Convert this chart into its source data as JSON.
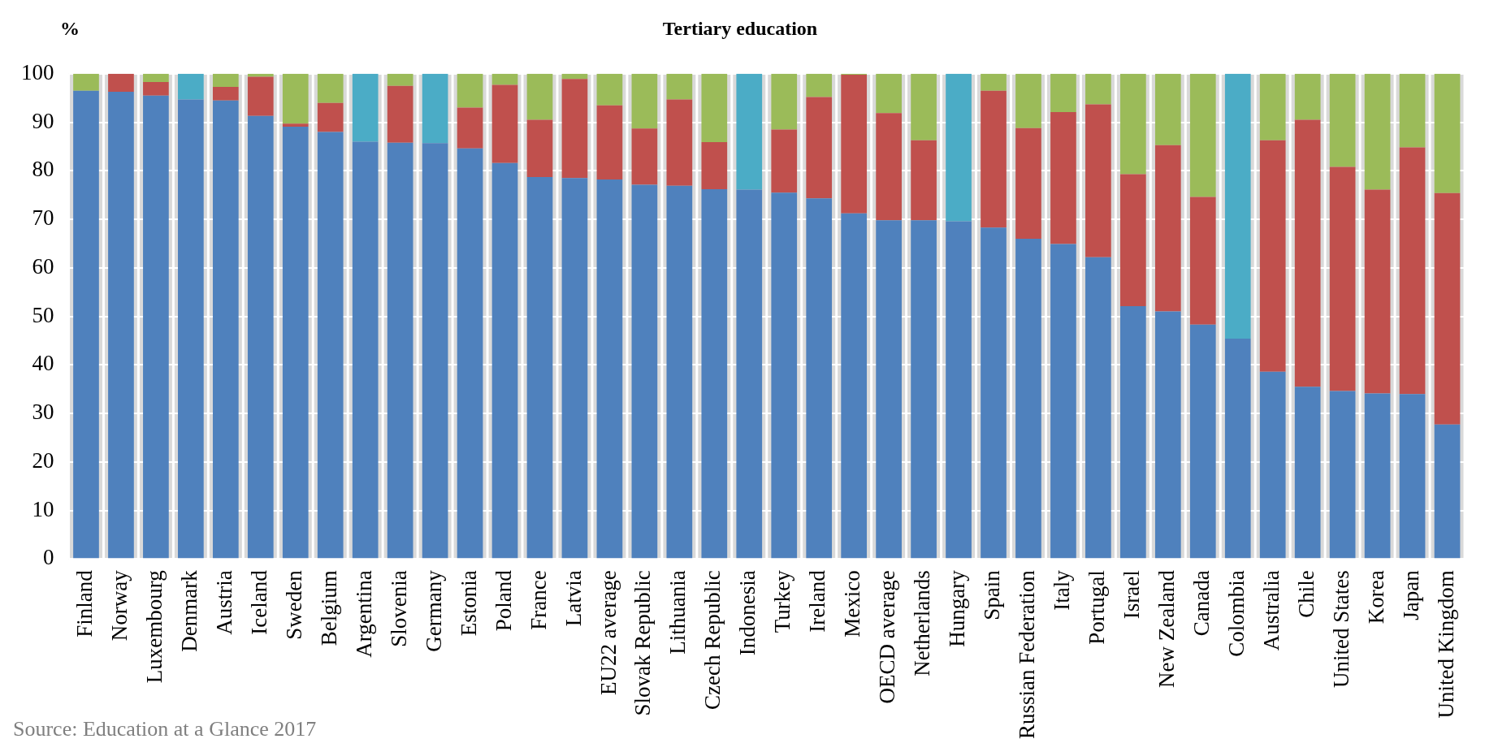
{
  "chart_data": {
    "type": "bar",
    "title": "Tertiary education",
    "ylabel": "%",
    "stacked": true,
    "grid": "y",
    "categories": [
      "Finland",
      "Norway",
      "Luxembourg",
      "Denmark",
      "Austria",
      "Iceland",
      "Sweden",
      "Belgium",
      "Argentina",
      "Slovenia",
      "Germany",
      "Estonia",
      "Poland",
      "France",
      "Latvia",
      "EU22 average",
      "Slovak Republic",
      "Lithuania",
      "Czech Republic",
      "Indonesia",
      "Turkey",
      "Ireland",
      "Mexico",
      "OECD average",
      "Netherlands",
      "Hungary",
      "Spain",
      "Russian Federation",
      "Italy",
      "Portugal",
      "Israel",
      "New Zealand",
      "Canada",
      "Colombia",
      "Australia",
      "Chile",
      "United States",
      "Korea",
      "Japan",
      "United Kingdom"
    ],
    "series": [
      {
        "color": "#4f81bd",
        "values": [
          96.5,
          96.3,
          95.5,
          94.7,
          94.5,
          91.3,
          89.1,
          88,
          86,
          85.8,
          85.7,
          84.6,
          81.6,
          78.7,
          78.5,
          78.2,
          77.1,
          76.9,
          76.2,
          76.1,
          75.5,
          74.3,
          71.2,
          69.8,
          69.8,
          69.6,
          68.3,
          66,
          64.9,
          62.2,
          52.1,
          51,
          48.3,
          45.4,
          38.6,
          35.5,
          34.6,
          34.1,
          34,
          27.7
        ]
      },
      {
        "color": "#c0504d",
        "values": [
          null,
          3.7,
          2.8,
          null,
          2.8,
          8.1,
          0.6,
          6,
          null,
          11.7,
          null,
          8.4,
          16.1,
          11.8,
          20.4,
          15.3,
          11.6,
          17.8,
          9.7,
          null,
          13,
          20.9,
          28.6,
          22.1,
          16.5,
          null,
          28.2,
          22.8,
          27.2,
          31.5,
          27.2,
          34.3,
          26.3,
          null,
          47.7,
          55,
          46.2,
          42,
          50.8,
          47.7
        ]
      },
      {
        "color": "#9bbb59",
        "values": [
          3.5,
          null,
          1.7,
          null,
          2.7,
          0.6,
          10.3,
          6,
          null,
          2.5,
          null,
          7,
          2.3,
          9.5,
          1.1,
          6.5,
          11.3,
          5.3,
          14.1,
          null,
          11.5,
          4.8,
          0.2,
          8.1,
          13.7,
          null,
          3.5,
          11.2,
          7.9,
          6.3,
          20.7,
          14.7,
          25.4,
          null,
          13.7,
          9.5,
          19.2,
          23.9,
          15.2,
          24.6
        ]
      },
      {
        "color": "#4bacc6",
        "values": [
          null,
          null,
          null,
          5.3,
          null,
          null,
          null,
          null,
          14,
          null,
          14.3,
          null,
          null,
          null,
          null,
          null,
          null,
          null,
          null,
          23.9,
          null,
          null,
          null,
          null,
          null,
          30.4,
          null,
          null,
          null,
          null,
          null,
          null,
          null,
          54.6,
          null,
          null,
          null,
          null,
          null,
          null
        ]
      }
    ],
    "ylim": [
      0,
      100
    ],
    "yticks": [
      0,
      10,
      20,
      30,
      40,
      50,
      60,
      70,
      80,
      90,
      100
    ],
    "annotations": [
      "Source: Education at a Glance 2017"
    ]
  }
}
